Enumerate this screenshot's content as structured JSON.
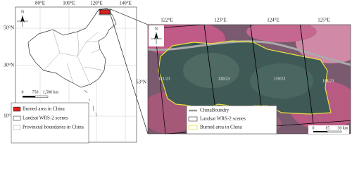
{
  "left_map": {
    "lon_labels": [
      "80°E",
      "100°E",
      "120°E",
      "140°E"
    ],
    "lat_labels": [
      "50°N",
      "30°N",
      "10°N"
    ],
    "north": "N",
    "scale_labels": [
      "0",
      "750",
      "1,500 km"
    ],
    "legend": [
      "Burned area in China",
      "Landsat WRS-2 scenes",
      "Provincial boundaries in China"
    ]
  },
  "right_map": {
    "lon_labels": [
      "122°E",
      "123°E",
      "124°E",
      "125°E"
    ],
    "lat_label": "53°N",
    "north": "N",
    "scene_labels": [
      "121/23",
      "120/23",
      "119/23",
      "118/23"
    ],
    "scale_labels": [
      "0",
      "15",
      "30 km"
    ],
    "legend": [
      "ChinaBoundry",
      "Landsat WRS-2 scenes",
      "Burned area in China"
    ]
  }
}
